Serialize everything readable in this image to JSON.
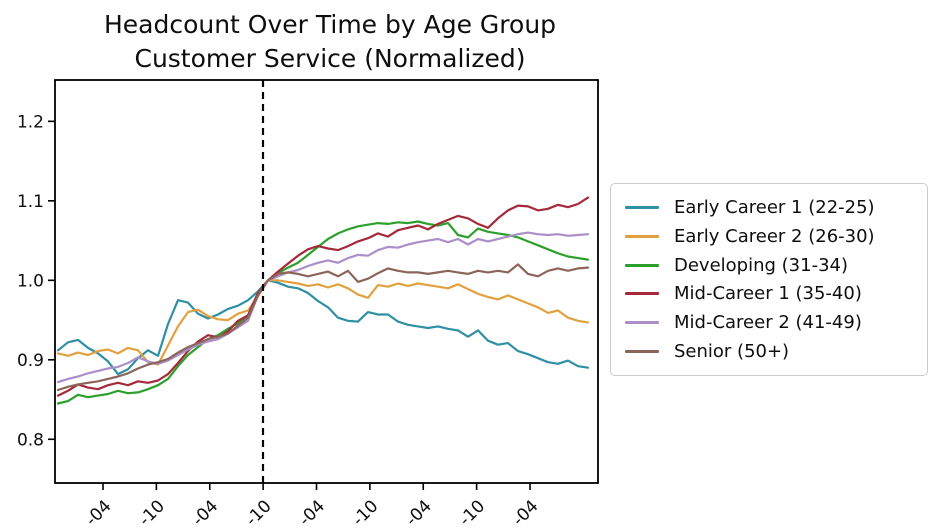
{
  "title": {
    "line1": "Headcount Over Time by Age Group",
    "line2": "Customer Service (Normalized)"
  },
  "chart_data": {
    "type": "line",
    "title": "Headcount Over Time by Age Group Customer Service (Normalized)",
    "xlabel": "",
    "ylabel": "",
    "grid": false,
    "legend_position": "right-outside",
    "y_ticks": [
      0.8,
      0.9,
      1.0,
      1.1,
      1.2
    ],
    "y_tick_labels": [
      "0.8",
      "0.9",
      "1.0",
      "1.1",
      "1.2"
    ],
    "ylim": [
      0.745,
      1.252
    ],
    "x_tick_labels_visible": [
      "-04",
      "-10",
      "-04",
      "-10",
      "-04",
      "-10",
      "-04",
      "-10",
      "-04"
    ],
    "x_tick_label_note": "date labels rotated 45°, year portion clipped by image edge",
    "normalization_vline_at_index": 21,
    "vline_style": "black-dashed",
    "series": [
      {
        "name": "Early Career 1 (22-25)",
        "color": "#2f8fa3",
        "values": [
          0.912,
          0.922,
          0.925,
          0.915,
          0.908,
          0.898,
          0.882,
          0.888,
          0.902,
          0.912,
          0.905,
          0.945,
          0.975,
          0.972,
          0.958,
          0.952,
          0.957,
          0.964,
          0.968,
          0.975,
          0.986,
          1.0,
          0.997,
          0.992,
          0.99,
          0.984,
          0.974,
          0.966,
          0.953,
          0.949,
          0.948,
          0.96,
          0.957,
          0.957,
          0.948,
          0.944,
          0.942,
          0.94,
          0.942,
          0.939,
          0.937,
          0.929,
          0.937,
          0.924,
          0.919,
          0.921,
          0.911,
          0.907,
          0.902,
          0.897,
          0.895,
          0.899,
          0.892,
          0.89
        ]
      },
      {
        "name": "Early Career 2 (26-30)",
        "color": "#e2a13f",
        "values": [
          0.908,
          0.905,
          0.909,
          0.906,
          0.911,
          0.913,
          0.908,
          0.915,
          0.912,
          0.897,
          0.894,
          0.918,
          0.942,
          0.96,
          0.963,
          0.955,
          0.951,
          0.95,
          0.958,
          0.962,
          0.98,
          1.0,
          1.0,
          0.998,
          0.996,
          0.993,
          0.995,
          0.991,
          0.995,
          0.99,
          0.982,
          0.978,
          0.994,
          0.992,
          0.996,
          0.993,
          0.996,
          0.994,
          0.992,
          0.99,
          0.995,
          0.989,
          0.983,
          0.979,
          0.976,
          0.981,
          0.976,
          0.971,
          0.966,
          0.959,
          0.962,
          0.953,
          0.949,
          0.947
        ]
      },
      {
        "name": "Developing (31-34)",
        "color": "#2ca02c",
        "values": [
          0.845,
          0.848,
          0.856,
          0.853,
          0.855,
          0.857,
          0.861,
          0.858,
          0.859,
          0.863,
          0.868,
          0.876,
          0.892,
          0.906,
          0.916,
          0.926,
          0.931,
          0.939,
          0.946,
          0.956,
          0.984,
          1.0,
          1.009,
          1.016,
          1.022,
          1.032,
          1.042,
          1.052,
          1.059,
          1.064,
          1.068,
          1.07,
          1.072,
          1.071,
          1.073,
          1.072,
          1.074,
          1.071,
          1.069,
          1.072,
          1.057,
          1.054,
          1.065,
          1.061,
          1.059,
          1.057,
          1.054,
          1.049,
          1.044,
          1.039,
          1.034,
          1.03,
          1.028,
          1.026
        ]
      },
      {
        "name": "Mid-Career 1 (35-40)",
        "color": "#a42a3a",
        "values": [
          0.855,
          0.861,
          0.869,
          0.865,
          0.863,
          0.868,
          0.871,
          0.868,
          0.873,
          0.871,
          0.874,
          0.882,
          0.896,
          0.911,
          0.923,
          0.931,
          0.928,
          0.936,
          0.949,
          0.956,
          0.984,
          1.0,
          1.011,
          1.021,
          1.031,
          1.039,
          1.043,
          1.04,
          1.038,
          1.043,
          1.049,
          1.053,
          1.059,
          1.055,
          1.063,
          1.066,
          1.069,
          1.064,
          1.071,
          1.076,
          1.081,
          1.078,
          1.071,
          1.066,
          1.078,
          1.088,
          1.094,
          1.093,
          1.088,
          1.09,
          1.095,
          1.092,
          1.096,
          1.104
        ]
      },
      {
        "name": "Mid-Career 2 (41-49)",
        "color": "#ab8fc9",
        "values": [
          0.872,
          0.876,
          0.879,
          0.883,
          0.886,
          0.889,
          0.891,
          0.896,
          0.903,
          0.898,
          0.895,
          0.899,
          0.906,
          0.913,
          0.919,
          0.923,
          0.926,
          0.933,
          0.941,
          0.949,
          0.981,
          1.0,
          1.005,
          1.01,
          1.013,
          1.018,
          1.022,
          1.025,
          1.022,
          1.028,
          1.032,
          1.031,
          1.038,
          1.042,
          1.041,
          1.045,
          1.048,
          1.05,
          1.052,
          1.048,
          1.052,
          1.045,
          1.052,
          1.049,
          1.052,
          1.055,
          1.058,
          1.06,
          1.058,
          1.057,
          1.058,
          1.056,
          1.057,
          1.058
        ]
      },
      {
        "name": "Senior (50+)",
        "color": "#8c655a",
        "values": [
          0.862,
          0.866,
          0.869,
          0.871,
          0.873,
          0.876,
          0.879,
          0.883,
          0.889,
          0.894,
          0.897,
          0.901,
          0.909,
          0.916,
          0.921,
          0.926,
          0.929,
          0.933,
          0.943,
          0.953,
          0.981,
          1.0,
          1.008,
          1.01,
          1.008,
          1.005,
          1.008,
          1.011,
          1.005,
          1.012,
          0.998,
          1.002,
          1.009,
          1.015,
          1.012,
          1.01,
          1.01,
          1.008,
          1.01,
          1.012,
          1.01,
          1.008,
          1.012,
          1.01,
          1.012,
          1.01,
          1.02,
          1.008,
          1.005,
          1.012,
          1.015,
          1.012,
          1.015,
          1.016
        ]
      }
    ]
  }
}
